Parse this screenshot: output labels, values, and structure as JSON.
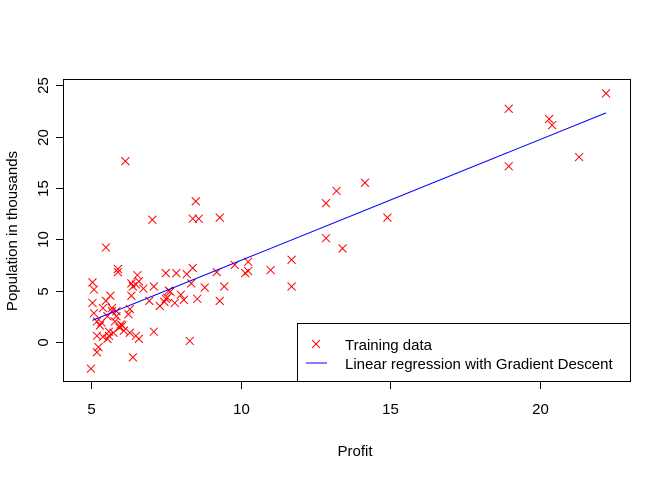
{
  "chart_data": {
    "type": "scatter",
    "title": "",
    "xlabel": "Profit",
    "ylabel": "Population in thousands",
    "xlim": [
      4.1,
      23.0
    ],
    "ylim": [
      -3.8,
      25.5
    ],
    "xticks": [
      5,
      10,
      15,
      20
    ],
    "yticks": [
      0,
      5,
      10,
      15,
      20,
      25
    ],
    "grid": false,
    "legend": {
      "position": "bottom-right",
      "entries": [
        "Training data",
        "Linear regression with Gradient Descent"
      ]
    },
    "series": [
      {
        "name": "Training data",
        "marker": "x",
        "color": "#ff0000",
        "points": [
          [
            5.0,
            -2.6
          ],
          [
            5.05,
            5.8
          ],
          [
            5.1,
            5.1
          ],
          [
            5.05,
            3.8
          ],
          [
            5.1,
            2.8
          ],
          [
            5.2,
            2.0
          ],
          [
            5.2,
            0.6
          ],
          [
            5.2,
            -1.0
          ],
          [
            5.25,
            -0.5
          ],
          [
            5.3,
            1.6
          ],
          [
            5.35,
            1.9
          ],
          [
            5.4,
            0.5
          ],
          [
            5.4,
            3.3
          ],
          [
            5.5,
            4.0
          ],
          [
            5.5,
            9.2
          ],
          [
            5.55,
            2.5
          ],
          [
            5.55,
            0.3
          ],
          [
            5.6,
            1.0
          ],
          [
            5.6,
            0.6
          ],
          [
            5.65,
            4.5
          ],
          [
            5.7,
            3.0
          ],
          [
            5.7,
            3.3
          ],
          [
            5.75,
            0.9
          ],
          [
            5.8,
            2.0
          ],
          [
            5.85,
            3.0
          ],
          [
            5.85,
            2.5
          ],
          [
            5.9,
            7.1
          ],
          [
            5.9,
            6.8
          ],
          [
            5.95,
            1.4
          ],
          [
            6.0,
            1.7
          ],
          [
            6.05,
            1.6
          ],
          [
            6.1,
            1.1
          ],
          [
            6.15,
            17.6
          ],
          [
            6.25,
            2.7
          ],
          [
            6.3,
            3.2
          ],
          [
            6.3,
            0.9
          ],
          [
            6.35,
            4.5
          ],
          [
            6.35,
            5.7
          ],
          [
            6.4,
            5.4
          ],
          [
            6.4,
            -1.5
          ],
          [
            6.5,
            5.6
          ],
          [
            6.5,
            0.6
          ],
          [
            6.55,
            6.5
          ],
          [
            6.6,
            5.9
          ],
          [
            6.6,
            0.3
          ],
          [
            6.75,
            5.2
          ],
          [
            6.95,
            4.0
          ],
          [
            7.05,
            11.9
          ],
          [
            7.1,
            1.0
          ],
          [
            7.1,
            5.4
          ],
          [
            7.3,
            3.5
          ],
          [
            7.45,
            3.9
          ],
          [
            7.5,
            4.2
          ],
          [
            7.5,
            6.7
          ],
          [
            7.55,
            4.3
          ],
          [
            7.6,
            5.0
          ],
          [
            7.65,
            4.9
          ],
          [
            7.8,
            3.8
          ],
          [
            7.85,
            6.7
          ],
          [
            8.0,
            4.6
          ],
          [
            8.1,
            4.1
          ],
          [
            8.2,
            6.6
          ],
          [
            8.3,
            0.1
          ],
          [
            8.35,
            5.7
          ],
          [
            8.4,
            7.2
          ],
          [
            8.4,
            12.0
          ],
          [
            8.5,
            13.7
          ],
          [
            8.55,
            4.2
          ],
          [
            8.6,
            12.0
          ],
          [
            8.8,
            5.3
          ],
          [
            9.2,
            6.8
          ],
          [
            9.3,
            12.1
          ],
          [
            9.3,
            4.0
          ],
          [
            9.45,
            5.4
          ],
          [
            9.8,
            7.5
          ],
          [
            10.15,
            6.7
          ],
          [
            10.25,
            6.9
          ],
          [
            10.25,
            7.8
          ],
          [
            11.0,
            7.0
          ],
          [
            11.7,
            8.0
          ],
          [
            11.7,
            5.4
          ],
          [
            12.85,
            13.5
          ],
          [
            12.85,
            10.1
          ],
          [
            13.2,
            14.7
          ],
          [
            13.4,
            9.1
          ],
          [
            14.15,
            15.5
          ],
          [
            14.9,
            12.1
          ],
          [
            18.95,
            22.7
          ],
          [
            18.95,
            17.1
          ],
          [
            20.3,
            21.7
          ],
          [
            20.4,
            21.1
          ],
          [
            21.3,
            18.0
          ],
          [
            22.2,
            24.2
          ]
        ]
      },
      {
        "name": "Linear regression with Gradient Descent",
        "line": true,
        "color": "#0000ff",
        "points": [
          [
            5.05,
            2.1
          ],
          [
            22.2,
            22.3
          ]
        ]
      }
    ]
  }
}
